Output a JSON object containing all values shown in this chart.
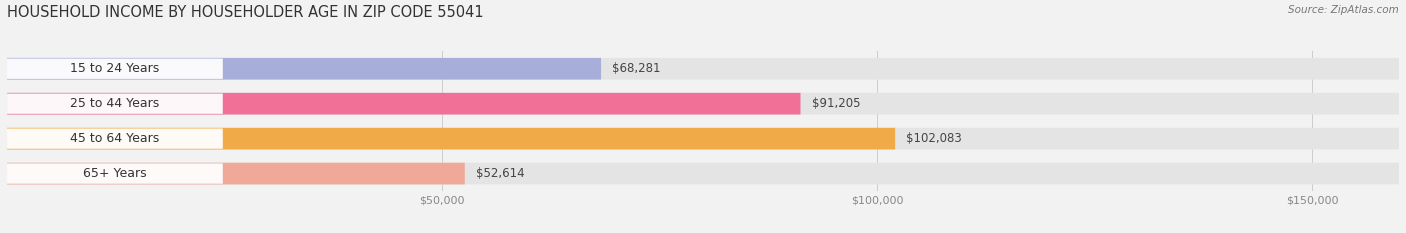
{
  "title": "HOUSEHOLD INCOME BY HOUSEHOLDER AGE IN ZIP CODE 55041",
  "source": "Source: ZipAtlas.com",
  "categories": [
    "15 to 24 Years",
    "25 to 44 Years",
    "45 to 64 Years",
    "65+ Years"
  ],
  "values": [
    68281,
    91205,
    102083,
    52614
  ],
  "bar_colors": [
    "#a8aeda",
    "#f07098",
    "#f0aa48",
    "#f0a898"
  ],
  "label_bg_color": "#ffffff",
  "background_color": "#f2f2f2",
  "bar_bg_color": "#e4e4e4",
  "xlim_max": 160000,
  "xticks": [
    50000,
    100000,
    150000
  ],
  "xtick_labels": [
    "$50,000",
    "$100,000",
    "$150,000"
  ],
  "title_fontsize": 10.5,
  "label_fontsize": 9,
  "value_fontsize": 8.5,
  "tick_fontsize": 8,
  "bar_height": 0.62,
  "title_color": "#333333",
  "source_color": "#777777",
  "label_color": "#333333",
  "value_color": "#444444",
  "tick_color": "#888888",
  "grid_color": "#cccccc"
}
